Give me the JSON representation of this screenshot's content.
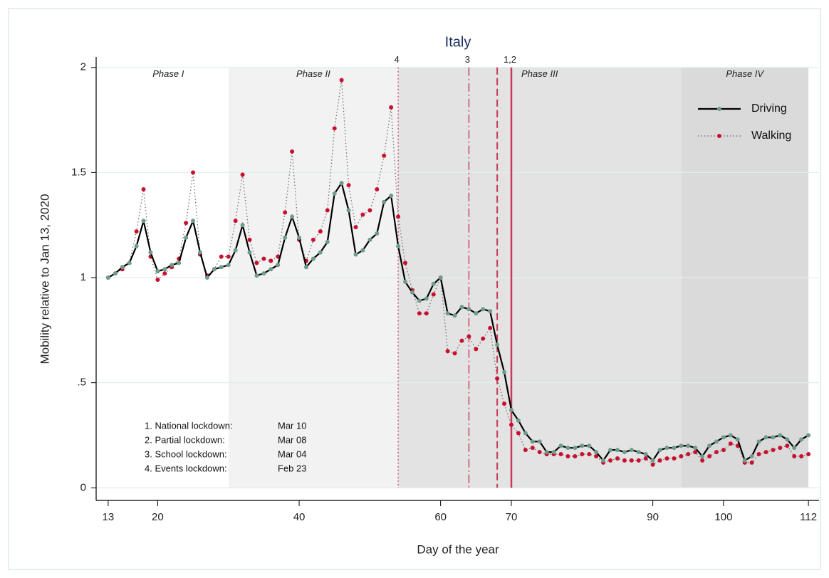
{
  "chart_data": {
    "type": "line",
    "title": "Italy",
    "x_label": "Day of the year",
    "y_label": "Mobility relative to Jan 13, 2020",
    "xlim": [
      11.3,
      113.5
    ],
    "ylim": [
      -0.06,
      2.05
    ],
    "xticks": [
      13,
      20,
      40,
      60,
      70,
      90,
      100,
      112
    ],
    "yticks": [
      0,
      {
        "value": 0.5,
        "label": ".5"
      },
      1,
      1.5,
      2
    ],
    "grid": true,
    "legend": "top-right",
    "x": [
      13,
      14,
      15,
      16,
      17,
      18,
      19,
      20,
      21,
      22,
      23,
      24,
      25,
      26,
      27,
      28,
      29,
      30,
      31,
      32,
      33,
      34,
      35,
      36,
      37,
      38,
      39,
      40,
      41,
      42,
      43,
      44,
      45,
      46,
      47,
      48,
      49,
      50,
      51,
      52,
      53,
      54,
      55,
      56,
      57,
      58,
      59,
      60,
      61,
      62,
      63,
      64,
      65,
      66,
      67,
      68,
      69,
      70,
      71,
      72,
      73,
      74,
      75,
      76,
      77,
      78,
      79,
      80,
      81,
      82,
      83,
      84,
      85,
      86,
      87,
      88,
      89,
      90,
      91,
      92,
      93,
      94,
      95,
      96,
      97,
      98,
      99,
      100,
      101,
      102,
      103,
      104,
      105,
      106,
      107,
      108,
      109,
      110,
      111,
      112
    ],
    "series": [
      {
        "name": "Driving",
        "color": "#000000",
        "marker_color": "#6e9c8c",
        "line_style": "solid",
        "values": [
          1.0,
          1.02,
          1.05,
          1.07,
          1.15,
          1.27,
          1.12,
          1.03,
          1.04,
          1.06,
          1.07,
          1.19,
          1.27,
          1.12,
          1.0,
          1.04,
          1.05,
          1.06,
          1.13,
          1.25,
          1.12,
          1.01,
          1.02,
          1.04,
          1.06,
          1.19,
          1.29,
          1.19,
          1.05,
          1.09,
          1.12,
          1.17,
          1.4,
          1.45,
          1.32,
          1.11,
          1.13,
          1.18,
          1.21,
          1.36,
          1.39,
          1.15,
          0.98,
          0.93,
          0.89,
          0.9,
          0.97,
          1.0,
          0.83,
          0.82,
          0.86,
          0.85,
          0.83,
          0.85,
          0.84,
          0.68,
          0.55,
          0.37,
          0.32,
          0.26,
          0.22,
          0.22,
          0.17,
          0.17,
          0.2,
          0.19,
          0.19,
          0.2,
          0.2,
          0.17,
          0.13,
          0.18,
          0.18,
          0.17,
          0.18,
          0.17,
          0.16,
          0.13,
          0.18,
          0.19,
          0.19,
          0.2,
          0.2,
          0.19,
          0.15,
          0.2,
          0.22,
          0.24,
          0.25,
          0.23,
          0.13,
          0.15,
          0.22,
          0.24,
          0.24,
          0.25,
          0.23,
          0.19,
          0.23,
          0.25
        ]
      },
      {
        "name": "Walking",
        "color": "#666666",
        "marker_color": "#c8102e",
        "line_style": "dotted",
        "values": [
          1.0,
          1.02,
          1.04,
          1.07,
          1.22,
          1.42,
          1.1,
          0.99,
          1.02,
          1.05,
          1.09,
          1.26,
          1.5,
          1.11,
          1.01,
          1.04,
          1.1,
          1.1,
          1.27,
          1.49,
          1.18,
          1.07,
          1.09,
          1.08,
          1.1,
          1.31,
          1.6,
          1.18,
          1.08,
          1.18,
          1.22,
          1.32,
          1.71,
          1.94,
          1.44,
          1.24,
          1.3,
          1.32,
          1.42,
          1.58,
          1.81,
          1.29,
          1.07,
          0.94,
          0.83,
          0.83,
          0.92,
          1.0,
          0.65,
          0.64,
          0.7,
          0.72,
          0.66,
          0.71,
          0.76,
          0.52,
          0.4,
          0.3,
          0.26,
          0.18,
          0.19,
          0.17,
          0.16,
          0.16,
          0.16,
          0.15,
          0.15,
          0.16,
          0.16,
          0.15,
          0.12,
          0.13,
          0.14,
          0.13,
          0.13,
          0.13,
          0.14,
          0.11,
          0.13,
          0.14,
          0.14,
          0.15,
          0.16,
          0.17,
          0.13,
          0.15,
          0.17,
          0.18,
          0.21,
          0.2,
          0.12,
          0.12,
          0.16,
          0.17,
          0.18,
          0.19,
          0.2,
          0.15,
          0.15,
          0.16
        ]
      }
    ],
    "phases": [
      {
        "label": "Phase I",
        "start": 13,
        "end": 30,
        "color": "#ffffff"
      },
      {
        "label": "Phase II",
        "start": 30,
        "end": 54,
        "color": "#f2f2f2"
      },
      {
        "label": "Phase III",
        "start": 54,
        "end": 94,
        "color": "#e3e3e3"
      },
      {
        "label": "Phase IV",
        "start": 94,
        "end": 112,
        "color": "#dadada"
      }
    ],
    "events": [
      {
        "day": 54,
        "label": "4",
        "style": "dotted"
      },
      {
        "day": 64,
        "label": "3",
        "style": "dashdot"
      },
      {
        "day": 68,
        "style": "dashed"
      },
      {
        "day": 70,
        "label": "1,2",
        "style": "solid"
      }
    ],
    "notes": [
      {
        "text": "1. National lockdown:",
        "date": "Mar 10"
      },
      {
        "text": "2. Partial lockdown:",
        "date": "Mar 08"
      },
      {
        "text": "3. School lockdown:",
        "date": "Mar 04"
      },
      {
        "text": "4. Events lockdown:",
        "date": "Feb 23"
      }
    ]
  }
}
